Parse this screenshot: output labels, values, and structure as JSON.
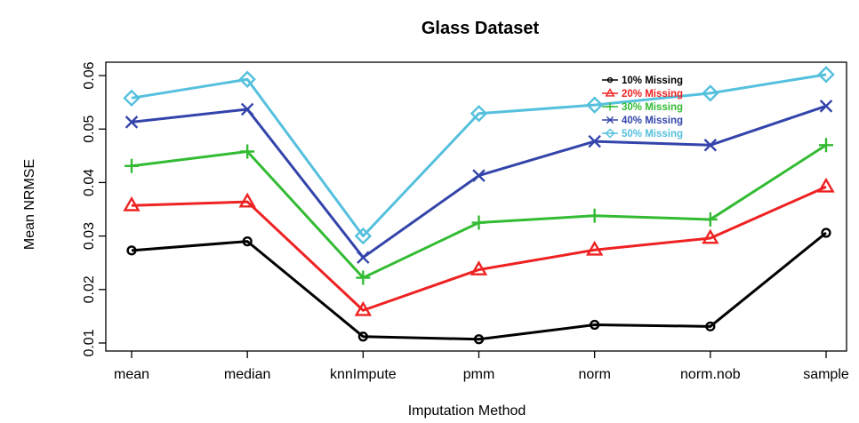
{
  "chart_data": {
    "type": "line",
    "title": "Glass Dataset",
    "xlabel": "Imputation Method",
    "ylabel": "Mean NRMSE",
    "categories": [
      "mean",
      "median",
      "knnImpute",
      "pmm",
      "norm",
      "norm.nob",
      "sample"
    ],
    "ylim": [
      0.0085,
      0.0625
    ],
    "yticks": [
      0.01,
      0.02,
      0.03,
      0.04,
      0.05,
      0.06
    ],
    "ytick_labels": [
      "0.01",
      "0.02",
      "0.03",
      "0.04",
      "0.05",
      "0.06"
    ],
    "grid": false,
    "legend_position": "top-right",
    "series": [
      {
        "name": "10% Missing",
        "color": "#000000",
        "marker": "circle",
        "values": [
          0.0273,
          0.029,
          0.0112,
          0.0107,
          0.0134,
          0.0131,
          0.0306
        ]
      },
      {
        "name": "20% Missing",
        "color": "#ee2222",
        "marker": "triangle",
        "values": [
          0.0357,
          0.0364,
          0.0161,
          0.0237,
          0.0274,
          0.0296,
          0.0392
        ]
      },
      {
        "name": "30% Missing",
        "color": "#33bb33",
        "marker": "plus",
        "values": [
          0.0431,
          0.0458,
          0.0222,
          0.0325,
          0.0338,
          0.0331,
          0.047
        ]
      },
      {
        "name": "40% Missing",
        "color": "#3344aa",
        "marker": "cross",
        "values": [
          0.0513,
          0.0537,
          0.026,
          0.0413,
          0.0477,
          0.047,
          0.0543
        ]
      },
      {
        "name": "50% Missing",
        "color": "#55c0dd",
        "marker": "diamond",
        "values": [
          0.0558,
          0.0593,
          0.03,
          0.0529,
          0.0545,
          0.0567,
          0.0602
        ]
      }
    ]
  }
}
